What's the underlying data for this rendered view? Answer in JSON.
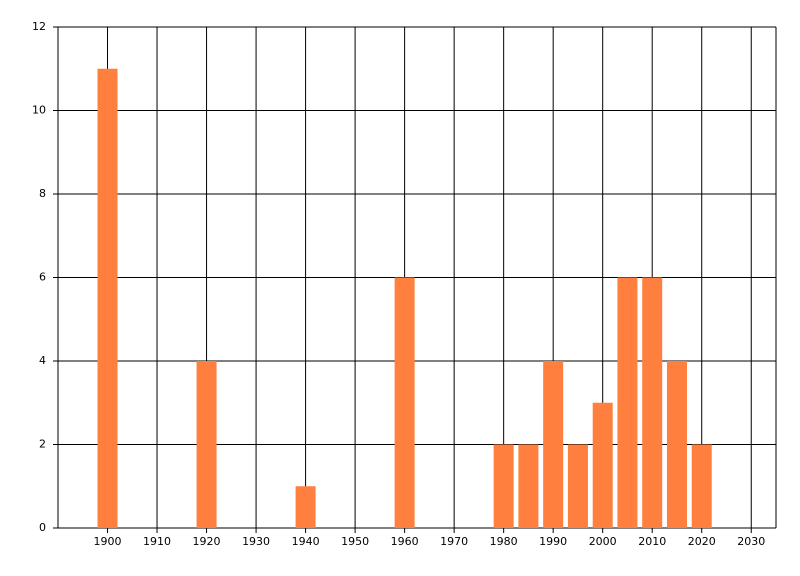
{
  "chart_data": {
    "type": "bar",
    "x": [
      1900,
      1920,
      1940,
      1960,
      1980,
      1985,
      1990,
      1995,
      2000,
      2005,
      2010,
      2015,
      2020
    ],
    "values": [
      11,
      4,
      1,
      6,
      2,
      2,
      4,
      2,
      3,
      6,
      6,
      4,
      2
    ],
    "color": "#ff7f3f",
    "xlim": [
      1890,
      2035
    ],
    "xticks": [
      1900,
      1910,
      1920,
      1930,
      1940,
      1950,
      1960,
      1970,
      1980,
      1990,
      2000,
      2010,
      2020,
      2030
    ],
    "ylim": [
      0,
      12
    ],
    "yticks": [
      0,
      2,
      4,
      6,
      8,
      10,
      12
    ],
    "grid": true
  }
}
